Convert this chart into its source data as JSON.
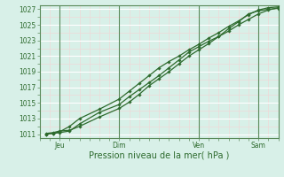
{
  "xlabel": "Pression niveau de la mer( hPa )",
  "bg_color": "#d8f0e8",
  "plot_bg_color": "#d8f0e8",
  "grid_major_color": "#ffffff",
  "grid_minor_color": "#f0d8d8",
  "line_color": "#2d6a2d",
  "spine_color": "#5a8a5a",
  "tick_color": "#2d6a2d",
  "xlim": [
    0,
    72
  ],
  "ylim": [
    1010.5,
    1027.5
  ],
  "yticks": [
    1011,
    1013,
    1015,
    1017,
    1019,
    1021,
    1023,
    1025,
    1027
  ],
  "xtick_positions": [
    6,
    24,
    48,
    66
  ],
  "xtick_labels": [
    "Jeu",
    "Dim",
    "Ven",
    "Sam"
  ],
  "vline_positions": [
    6,
    24,
    48,
    66
  ],
  "series1_x": [
    2,
    4,
    6,
    9,
    12,
    18,
    24,
    27,
    30,
    33,
    36,
    39,
    42,
    45,
    48,
    51,
    54,
    57,
    60,
    63,
    66,
    69,
    72
  ],
  "series1_y": [
    1011.1,
    1011.2,
    1011.4,
    1011.5,
    1012.0,
    1013.2,
    1014.3,
    1015.1,
    1016.1,
    1017.2,
    1018.1,
    1019.0,
    1020.0,
    1021.0,
    1021.8,
    1022.6,
    1023.5,
    1024.5,
    1025.4,
    1026.4,
    1026.8,
    1027.0,
    1027.1
  ],
  "series2_x": [
    2,
    4,
    6,
    9,
    12,
    18,
    24,
    27,
    30,
    33,
    36,
    39,
    42,
    45,
    48,
    51,
    54,
    57,
    60,
    63,
    66,
    69,
    72
  ],
  "series2_y": [
    1011.0,
    1011.1,
    1011.2,
    1011.4,
    1012.3,
    1013.8,
    1014.8,
    1015.8,
    1016.7,
    1017.6,
    1018.5,
    1019.5,
    1020.5,
    1021.5,
    1022.2,
    1022.9,
    1023.5,
    1024.2,
    1025.0,
    1025.7,
    1026.4,
    1026.9,
    1027.2
  ],
  "series3_x": [
    2,
    4,
    6,
    9,
    12,
    18,
    24,
    27,
    30,
    33,
    36,
    39,
    42,
    45,
    48,
    51,
    54,
    57,
    60,
    63,
    66,
    69,
    72
  ],
  "series3_y": [
    1011.0,
    1011.1,
    1011.3,
    1012.0,
    1013.0,
    1014.2,
    1015.5,
    1016.5,
    1017.5,
    1018.5,
    1019.5,
    1020.3,
    1021.0,
    1021.8,
    1022.5,
    1023.3,
    1024.0,
    1024.8,
    1025.5,
    1026.3,
    1026.9,
    1027.2,
    1027.3
  ]
}
